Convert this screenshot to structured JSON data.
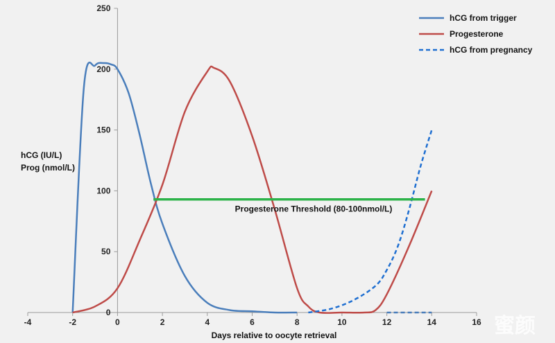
{
  "chart_data": {
    "type": "line",
    "xlabel": "Days relative to  oocyte retrieval",
    "ylabel_lines": [
      "hCG (IU/L)",
      "Prog (nmol/L)"
    ],
    "xlim": [
      -4,
      16
    ],
    "ylim": [
      0,
      250
    ],
    "x_ticks": [
      -4,
      -2,
      0,
      2,
      4,
      6,
      8,
      10,
      12,
      14,
      16
    ],
    "y_ticks": [
      0,
      50,
      100,
      150,
      200,
      250
    ],
    "grid": false,
    "legend_position": "top-right",
    "series": [
      {
        "name": "hCG from trigger",
        "color": "#4a7ebb",
        "style": "solid",
        "x": [
          -2,
          -1.5,
          -1.0,
          -0.6,
          -0.3,
          0,
          0.5,
          1,
          1.5,
          2,
          3,
          4,
          5,
          6,
          7,
          8
        ],
        "y": [
          0,
          185,
          203,
          205,
          204,
          200,
          180,
          145,
          105,
          73,
          30,
          8,
          2,
          1,
          0,
          0
        ]
      },
      {
        "name": "Progesterone",
        "color": "#be4b48",
        "style": "solid",
        "x": [
          -2,
          -1,
          0,
          1,
          2,
          3,
          4,
          4.3,
          5,
          6,
          7,
          8,
          8.5,
          9,
          10,
          11,
          11.5,
          12,
          13,
          14
        ],
        "y": [
          0,
          5,
          20,
          60,
          105,
          165,
          198,
          201,
          190,
          145,
          85,
          20,
          5,
          0,
          0,
          0,
          2,
          15,
          55,
          100
        ]
      },
      {
        "name": "hCG from pregnancy",
        "color": "#1f6fd1",
        "style": "dashed",
        "x": [
          8.5,
          9.5,
          10.5,
          11.5,
          12,
          12.5,
          13,
          13.5,
          14
        ],
        "y": [
          0,
          3,
          10,
          22,
          35,
          55,
          85,
          120,
          150
        ]
      },
      {
        "name": "",
        "color": "#4a7ebb",
        "style": "dashed",
        "x": [
          12,
          14
        ],
        "y": [
          0,
          0
        ]
      }
    ],
    "threshold": {
      "label": "Progesterone Threshold (80-100nmol/L)",
      "color": "#2db34a",
      "y": 93,
      "x_start": 1.6,
      "x_end": 13.7
    }
  },
  "watermark": "蜜颜"
}
